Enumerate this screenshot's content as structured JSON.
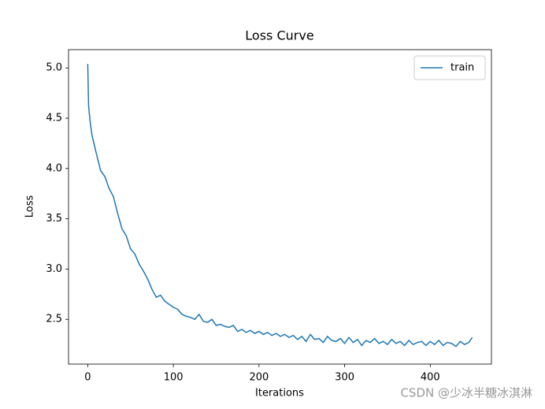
{
  "chart_data": {
    "type": "line",
    "title": "Loss Curve",
    "xlabel": "Iterations",
    "ylabel": "Loss",
    "watermark": "CSDN @少冰半糖冰淇淋",
    "x": [
      0,
      1,
      3,
      5,
      10,
      15,
      20,
      25,
      30,
      35,
      40,
      45,
      50,
      55,
      60,
      65,
      70,
      75,
      80,
      85,
      90,
      95,
      100,
      105,
      110,
      115,
      120,
      125,
      130,
      135,
      140,
      145,
      150,
      155,
      160,
      165,
      170,
      175,
      180,
      185,
      190,
      195,
      200,
      205,
      210,
      215,
      220,
      225,
      230,
      235,
      240,
      245,
      250,
      255,
      260,
      265,
      270,
      275,
      280,
      285,
      290,
      295,
      300,
      305,
      310,
      315,
      320,
      325,
      330,
      335,
      340,
      345,
      350,
      355,
      360,
      365,
      370,
      375,
      380,
      385,
      390,
      395,
      400,
      405,
      410,
      415,
      420,
      425,
      430,
      435,
      440,
      445,
      449
    ],
    "series": [
      {
        "name": "train",
        "color": "#1f77b4",
        "values": [
          5.04,
          4.62,
          4.45,
          4.33,
          4.15,
          3.98,
          3.92,
          3.8,
          3.72,
          3.55,
          3.4,
          3.33,
          3.2,
          3.15,
          3.05,
          2.98,
          2.9,
          2.8,
          2.72,
          2.74,
          2.68,
          2.65,
          2.62,
          2.6,
          2.55,
          2.53,
          2.52,
          2.5,
          2.55,
          2.48,
          2.47,
          2.5,
          2.44,
          2.45,
          2.43,
          2.42,
          2.44,
          2.38,
          2.4,
          2.37,
          2.39,
          2.36,
          2.38,
          2.35,
          2.37,
          2.34,
          2.36,
          2.33,
          2.35,
          2.32,
          2.34,
          2.3,
          2.33,
          2.28,
          2.35,
          2.3,
          2.31,
          2.27,
          2.33,
          2.29,
          2.28,
          2.31,
          2.26,
          2.32,
          2.27,
          2.3,
          2.24,
          2.29,
          2.27,
          2.31,
          2.26,
          2.28,
          2.25,
          2.3,
          2.26,
          2.28,
          2.24,
          2.29,
          2.25,
          2.27,
          2.28,
          2.24,
          2.28,
          2.25,
          2.29,
          2.24,
          2.27,
          2.26,
          2.23,
          2.28,
          2.25,
          2.27,
          2.32
        ]
      }
    ],
    "xlim": [
      -22.45,
      471.45
    ],
    "xticks": [
      0,
      100,
      200,
      300,
      400
    ],
    "ylim": [
      2.055,
      5.182
    ],
    "yticks": [
      2.5,
      {
        "value": 3,
        "label": "3.0"
      },
      3.5,
      {
        "value": 4,
        "label": "4.0"
      },
      4.5,
      {
        "value": 5,
        "label": "5.0"
      }
    ],
    "legend": "upper right",
    "grid": false
  }
}
